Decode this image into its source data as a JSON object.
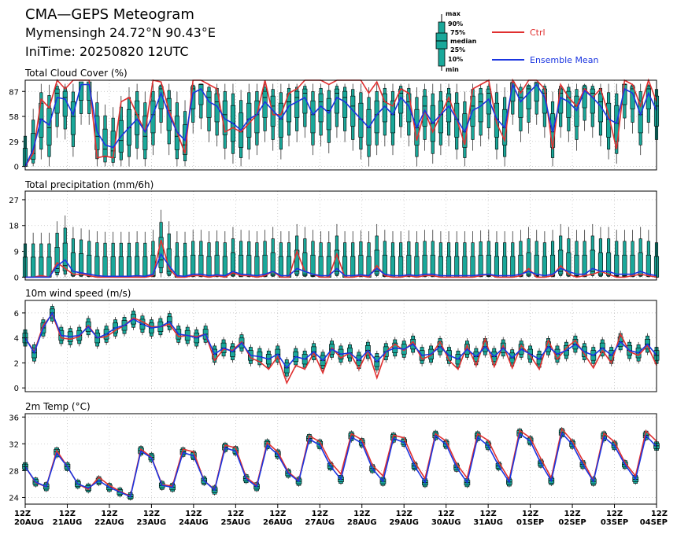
{
  "header": {
    "title": "CMA—GEPS Meteogram",
    "location": "Mymensingh 24.72°N 90.43°E",
    "init_time": "IniTime: 20250820 12UTC"
  },
  "legend": {
    "box_labels": [
      "max",
      "90%",
      "75%",
      "median",
      "25%",
      "10%",
      "min"
    ],
    "ctrl_label": "Ctrl",
    "mean_label": "Ensemble Mean",
    "ctrl_color": "#e03030",
    "mean_color": "#1a35e0",
    "box_color": "#1aa89a"
  },
  "x_axis": {
    "ticks": [
      {
        "hour": "12Z",
        "date": "20AUG"
      },
      {
        "hour": "12Z",
        "date": "21AUG"
      },
      {
        "hour": "12Z",
        "date": "22AUG"
      },
      {
        "hour": "12Z",
        "date": "23AUG"
      },
      {
        "hour": "12Z",
        "date": "24AUG"
      },
      {
        "hour": "12Z",
        "date": "25AUG"
      },
      {
        "hour": "12Z",
        "date": "26AUG"
      },
      {
        "hour": "12Z",
        "date": "27AUG"
      },
      {
        "hour": "12Z",
        "date": "28AUG"
      },
      {
        "hour": "12Z",
        "date": "29AUG"
      },
      {
        "hour": "12Z",
        "date": "30AUG"
      },
      {
        "hour": "12Z",
        "date": "31AUG"
      },
      {
        "hour": "12Z",
        "date": "01SEP"
      },
      {
        "hour": "12Z",
        "date": "02SEP"
      },
      {
        "hour": "12Z",
        "date": "03SEP"
      },
      {
        "hour": "12Z",
        "date": "04SEP"
      }
    ]
  },
  "chart_data": [
    {
      "type": "boxplot-line",
      "title": "Total Cloud Cover (%)",
      "ylim": [
        -4,
        100
      ],
      "yticks": [
        0,
        29,
        58,
        87
      ],
      "ctrl": [
        0,
        15,
        78,
        68,
        100,
        90,
        100,
        100,
        100,
        10,
        12,
        10,
        75,
        80,
        60,
        40,
        100,
        98,
        65,
        40,
        15,
        100,
        100,
        95,
        90,
        40,
        45,
        40,
        50,
        60,
        100,
        60,
        60,
        85,
        90,
        100,
        100,
        100,
        95,
        100,
        100,
        100,
        100,
        85,
        98,
        75,
        70,
        90,
        85,
        30,
        65,
        40,
        60,
        80,
        55,
        25,
        90,
        95,
        100,
        50,
        30,
        100,
        85,
        100,
        100,
        90,
        20,
        95,
        80,
        70,
        90,
        80,
        90,
        60,
        20,
        100,
        95,
        70,
        100,
        75
      ],
      "mean": [
        0,
        20,
        55,
        48,
        80,
        78,
        60,
        95,
        95,
        40,
        25,
        22,
        35,
        45,
        55,
        40,
        60,
        85,
        60,
        40,
        30,
        85,
        90,
        75,
        70,
        55,
        50,
        42,
        55,
        60,
        75,
        65,
        55,
        70,
        75,
        80,
        60,
        70,
        62,
        80,
        75,
        65,
        55,
        45,
        60,
        70,
        60,
        80,
        70,
        45,
        65,
        50,
        60,
        70,
        55,
        40,
        65,
        70,
        78,
        55,
        45,
        95,
        75,
        85,
        95,
        80,
        40,
        80,
        75,
        65,
        88,
        80,
        70,
        55,
        50,
        90,
        85,
        60,
        85,
        65
      ],
      "median": [
        0,
        15,
        55,
        45,
        85,
        80,
        58,
        100,
        100,
        35,
        20,
        18,
        30,
        45,
        60,
        35,
        60,
        90,
        65,
        35,
        25,
        90,
        95,
        80,
        75,
        60,
        50,
        40,
        55,
        60,
        80,
        70,
        55,
        75,
        80,
        85,
        60,
        75,
        65,
        85,
        80,
        70,
        55,
        45,
        60,
        75,
        60,
        85,
        75,
        45,
        70,
        50,
        60,
        75,
        55,
        40,
        70,
        75,
        85,
        55,
        45,
        98,
        80,
        90,
        98,
        85,
        40,
        85,
        80,
        70,
        90,
        85,
        75,
        55,
        50,
        95,
        90,
        60,
        90,
        70
      ]
    },
    {
      "type": "boxplot-line",
      "title": "Total precipitation (mm/6h)",
      "ylim": [
        -1,
        30
      ],
      "yticks": [
        0,
        9,
        18,
        27
      ],
      "ctrl": [
        0,
        0,
        0.5,
        0,
        5,
        3,
        1,
        1,
        0.5,
        0,
        0,
        0,
        0,
        0,
        0,
        0,
        0.5,
        13,
        3,
        0,
        0,
        0.5,
        0.5,
        0,
        0.5,
        0,
        1.5,
        0.5,
        0.5,
        0,
        0.5,
        2,
        0,
        0,
        9,
        2,
        1,
        0,
        0,
        8,
        0,
        0,
        0.5,
        0,
        4,
        0.5,
        0,
        0,
        0.5,
        0,
        0.5,
        0.5,
        0,
        0,
        0,
        0,
        0,
        0.5,
        1,
        0,
        0,
        0,
        0.5,
        3,
        0,
        0,
        0.5,
        4,
        1,
        0,
        0.5,
        1,
        2,
        1,
        0,
        0,
        0.5,
        1,
        0.5,
        0
      ],
      "mean": [
        0,
        0,
        0,
        0,
        4,
        6,
        2,
        1.5,
        1,
        0.5,
        0.3,
        0.3,
        0.3,
        0.3,
        0.5,
        0.3,
        1,
        8,
        4,
        0.5,
        0.3,
        1,
        1,
        0.5,
        0.8,
        0.5,
        2,
        1,
        0.8,
        0.5,
        1,
        2,
        0.5,
        0.5,
        3,
        2,
        1,
        0.5,
        0.5,
        3,
        0.5,
        0.5,
        0.8,
        0.5,
        3,
        1,
        0.5,
        0.5,
        0.8,
        0.5,
        1,
        1,
        0.5,
        0.5,
        0.5,
        0.5,
        0.5,
        0.8,
        1,
        0.5,
        0.5,
        0.5,
        1,
        2,
        1,
        0.5,
        1,
        3,
        2,
        1,
        1,
        3,
        2,
        2,
        1,
        1,
        1,
        2,
        1,
        0.5
      ],
      "median": [
        0,
        0,
        0,
        0,
        3,
        4,
        1,
        1,
        0.5,
        0,
        0,
        0,
        0,
        0,
        0,
        0,
        0.5,
        6,
        2,
        0,
        0,
        0.5,
        0.5,
        0,
        0.5,
        0,
        1,
        0.5,
        0.5,
        0,
        0.5,
        1,
        0,
        0,
        2,
        1,
        0.5,
        0,
        0,
        2,
        0,
        0,
        0.5,
        0,
        2,
        0.5,
        0,
        0,
        0.5,
        0,
        0.5,
        0.5,
        0,
        0,
        0,
        0,
        0,
        0.5,
        0.5,
        0,
        0,
        0,
        0.5,
        1,
        0.5,
        0,
        0.5,
        2,
        1,
        0.5,
        0.5,
        2,
        1,
        1,
        0.5,
        0.5,
        0.5,
        1,
        0.5,
        0
      ]
    },
    {
      "type": "boxplot-line",
      "title": "10m wind speed (m/s)",
      "ylim": [
        -0.3,
        7
      ],
      "yticks": [
        0,
        2,
        4,
        6
      ],
      "ctrl": [
        4,
        2.9,
        5,
        5.9,
        4,
        3.9,
        4.1,
        5,
        4,
        4.1,
        4.6,
        5,
        5.6,
        5.3,
        4.9,
        4.9,
        5.1,
        4.1,
        4.2,
        4.1,
        4.3,
        2.2,
        3.1,
        3,
        3.7,
        2.4,
        2.1,
        1.5,
        2.5,
        0.4,
        1.8,
        1.5,
        2.8,
        1.2,
        3.2,
        2.4,
        2.8,
        1.5,
        3,
        0.8,
        2.9,
        3.5,
        3,
        3.7,
        2.3,
        2.6,
        3.7,
        2.2,
        1.5,
        3.4,
        1.8,
        3.9,
        1.7,
        3.4,
        1.6,
        3.4,
        2.6,
        1.5,
        3.8,
        2.3,
        3.2,
        3.8,
        2.7,
        1.6,
        3,
        2,
        4.3,
        2.9,
        2.6,
        3.4,
        1.8
      ],
      "mean": [
        4,
        2.8,
        4.8,
        6,
        4.2,
        4.1,
        4.2,
        4.9,
        4,
        4.3,
        4.8,
        5,
        5.5,
        5.1,
        4.8,
        4.9,
        5.3,
        4.3,
        4.2,
        4,
        4.3,
        2.7,
        3.2,
        2.9,
        3.6,
        2.6,
        2.5,
        2.3,
        2.7,
        1.6,
        2.5,
        2.3,
        2.9,
        2.2,
        3.1,
        2.7,
        2.8,
        2.2,
        3,
        2.1,
        2.9,
        3.2,
        3.1,
        3.5,
        2.6,
        2.7,
        3.3,
        2.6,
        2.3,
        3.1,
        2.5,
        3.3,
        2.5,
        3.2,
        2.4,
        3.1,
        2.7,
        2.3,
        3.3,
        2.7,
        3,
        3.5,
        2.9,
        2.6,
        3.2,
        2.6,
        3.7,
        3,
        2.8,
        3.5,
        2.6
      ],
      "median": [
        4,
        2.8,
        4.8,
        6,
        4.2,
        4.1,
        4.2,
        4.9,
        4,
        4.3,
        4.8,
        5,
        5.5,
        5.1,
        4.8,
        4.9,
        5.3,
        4.3,
        4.2,
        4,
        4.3,
        2.7,
        3.2,
        2.9,
        3.6,
        2.6,
        2.5,
        2.3,
        2.7,
        1.6,
        2.5,
        2.3,
        2.9,
        2.2,
        3.1,
        2.7,
        2.8,
        2.2,
        3,
        2.1,
        2.9,
        3.2,
        3.1,
        3.5,
        2.6,
        2.7,
        3.3,
        2.6,
        2.3,
        3.1,
        2.5,
        3.3,
        2.5,
        3.2,
        2.4,
        3.1,
        2.7,
        2.3,
        3.3,
        2.7,
        3,
        3.5,
        2.9,
        2.6,
        3.2,
        2.6,
        3.7,
        3,
        2.8,
        3.5,
        2.6
      ]
    },
    {
      "type": "boxplot-line",
      "title": "2m Temp (°C)",
      "ylim": [
        23,
        36.5
      ],
      "yticks": [
        24,
        28,
        32,
        36
      ],
      "ctrl": [
        28.6,
        26.2,
        25.6,
        31,
        28.6,
        26,
        25.2,
        27,
        25.8,
        24.9,
        24.2,
        31.2,
        30,
        25.9,
        25.7,
        31.2,
        30.8,
        26.5,
        25.2,
        31.8,
        31.4,
        27,
        25.8,
        32.2,
        30.8,
        27.8,
        26.5,
        33.2,
        32.3,
        29.3,
        27.5,
        33.5,
        32.6,
        28.8,
        27.2,
        33.3,
        32.9,
        29.3,
        26.8,
        33.5,
        32.4,
        29,
        26.9,
        33.5,
        32.5,
        29.3,
        26.7,
        34,
        32.9,
        29.8,
        26.9,
        34.2,
        32.4,
        29.5,
        26.5,
        33.6,
        32.3,
        29.2,
        27.2,
        33.9,
        32.4
      ],
      "mean": [
        28.6,
        26.3,
        25.6,
        30.6,
        28.6,
        26,
        25.4,
        26.5,
        25.5,
        24.8,
        24.1,
        30.9,
        29.9,
        25.8,
        25.5,
        30.7,
        30.2,
        26.5,
        25.1,
        31.4,
        30.9,
        26.8,
        25.6,
        31.8,
        30.4,
        27.6,
        26.4,
        32.7,
        31.8,
        28.7,
        26.7,
        33,
        32.1,
        28.3,
        26.4,
        32.8,
        32.2,
        28.7,
        26.2,
        33.2,
        31.9,
        28.5,
        26.2,
        33,
        31.7,
        28.7,
        26.3,
        33.5,
        32.4,
        29.1,
        26.5,
        33.6,
        31.9,
        28.9,
        26.4,
        33,
        31.7,
        28.9,
        26.7,
        33.2,
        31.6
      ],
      "median": [
        28.6,
        26.3,
        25.6,
        30.8,
        28.6,
        26,
        25.4,
        26.5,
        25.5,
        24.8,
        24.1,
        31,
        30,
        25.8,
        25.5,
        30.8,
        30.3,
        26.5,
        25.1,
        31.5,
        31,
        26.8,
        25.6,
        32,
        30.5,
        27.6,
        26.4,
        32.8,
        32,
        28.7,
        26.7,
        33.2,
        32.2,
        28.3,
        26.4,
        33,
        32.3,
        28.7,
        26.2,
        33.3,
        32,
        28.5,
        26.2,
        33.2,
        31.8,
        28.7,
        26.3,
        33.6,
        32.5,
        29.1,
        26.5,
        33.7,
        32,
        28.9,
        26.4,
        33.2,
        31.8,
        28.9,
        26.7,
        33.3,
        31.7
      ]
    }
  ]
}
